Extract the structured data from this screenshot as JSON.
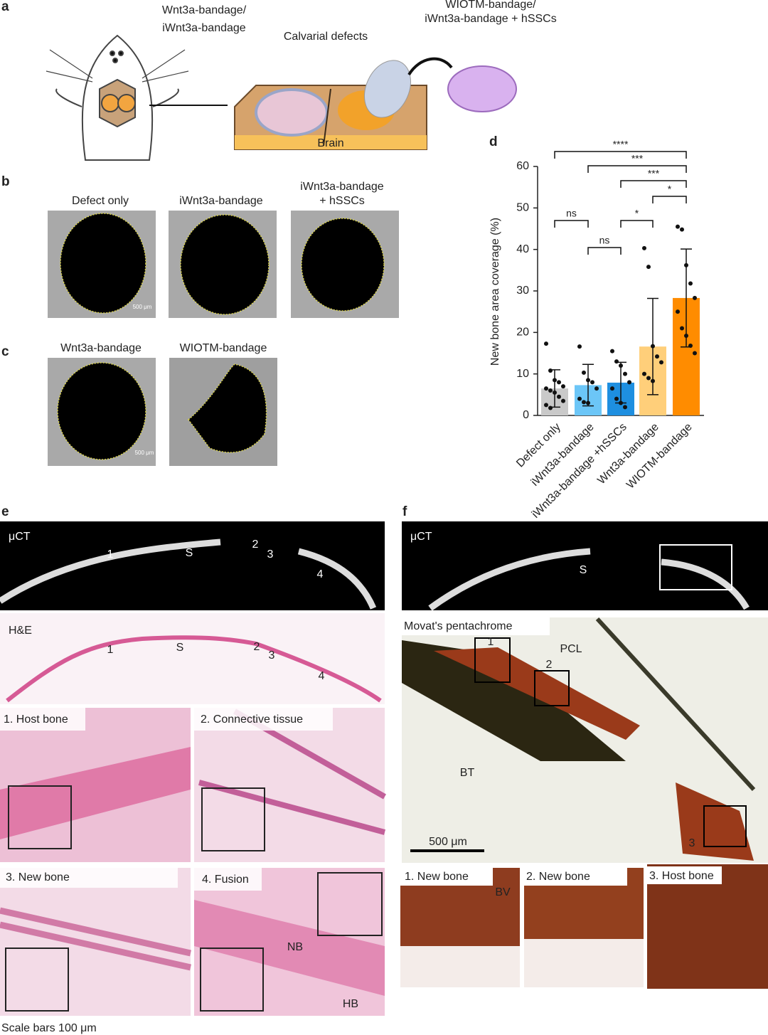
{
  "panel_labels": [
    "a",
    "b",
    "c",
    "d",
    "e",
    "f"
  ],
  "panel_a": {
    "bandage_label": [
      "Wnt3a-bandage/",
      "iWnt3a-bandage"
    ],
    "defects_label": "Calvarial defects",
    "cells_label": [
      "WIOTM-bandage/",
      "iWnt3a-bandage + hSSCs"
    ],
    "brain_label": "Brain"
  },
  "panel_b": {
    "titles": [
      "Defect only",
      "iWnt3a-bandage",
      "iWnt3a-bandage",
      "+ hSSCs"
    ],
    "scale_label": "500 μm"
  },
  "panel_c": {
    "titles": [
      "Wnt3a-bandage",
      "WIOTM-bandage"
    ],
    "scale_label": "500 μm"
  },
  "panel_e": {
    "uct_label": "μCT",
    "uct_markers": [
      "1",
      "S",
      "2",
      "3",
      "4"
    ],
    "he_label": "H&E",
    "he_markers": [
      "1",
      "S",
      "2",
      "3",
      "4"
    ],
    "insets": [
      "1. Host bone",
      "2. Connective tissue",
      "3. New bone",
      "4. Fusion"
    ],
    "fusion_labels": [
      "NB",
      "HB"
    ],
    "footnote": "Scale bars 100 μm"
  },
  "panel_f": {
    "uct_label": "μCT",
    "uct_marker": "S",
    "stain_label": "Movat's pentachrome",
    "stain_markers": [
      "1",
      "2",
      "3"
    ],
    "callouts": [
      "PCL",
      "BT"
    ],
    "scale_label": "500 μm",
    "insets": [
      "1. New bone",
      "2. New bone",
      "3. Host bone"
    ],
    "inset_callout": "BV"
  },
  "chart_data": {
    "type": "bar",
    "y_label": "New bone area coverage (%)",
    "categories": [
      "Defect only",
      "iWnt3a-bandage",
      "iWnt3a-bandage +hSSCs",
      "Wnt3a-bandage",
      "WIOTM-bandage"
    ],
    "values": [
      6.5,
      7.3,
      7.9,
      16.6,
      28.3
    ],
    "errors": [
      4.5,
      5.0,
      4.9,
      11.6,
      11.8
    ],
    "colors": [
      "#c9c9c9",
      "#6cc6f7",
      "#1e8fe0",
      "#ffcf7a",
      "#ff8c00"
    ],
    "points": [
      [
        17.3,
        10.8,
        8.5,
        8,
        7,
        6.5,
        6,
        5.5,
        4.5,
        3.5,
        2.5,
        1.8
      ],
      [
        16.6,
        10.3,
        8.5,
        8,
        6.5,
        4,
        3.2,
        3
      ],
      [
        15.5,
        13,
        12,
        10,
        8,
        6.5,
        4,
        3,
        2
      ],
      [
        40.3,
        35.8,
        16.7,
        14.2,
        12.8,
        10,
        9,
        8.3
      ],
      [
        45.5,
        44.8,
        36.2,
        31.8,
        28.3,
        25,
        21,
        19.2,
        16.8,
        15
      ]
    ],
    "annotations": [
      "****",
      "***",
      "***",
      "*",
      "ns",
      "*",
      "ns"
    ],
    "ylim": [
      0,
      60
    ],
    "yticks": [
      0,
      10,
      20,
      30,
      40,
      50,
      60
    ]
  }
}
